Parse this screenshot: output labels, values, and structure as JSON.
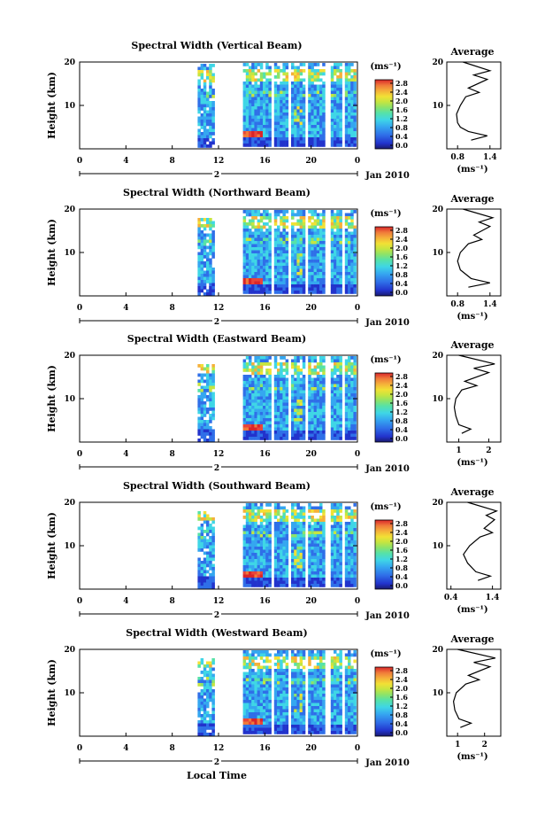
{
  "chart_data": {
    "type": "heatmap",
    "colorbar": {
      "unit": "(ms⁻¹)",
      "ticks": [
        "2.8",
        "2.4",
        "2.0",
        "1.6",
        "1.2",
        "0.8",
        "0.4",
        "0.0"
      ],
      "colors": [
        "#1a1a6e",
        "#2233cc",
        "#2f6fe8",
        "#35a7f0",
        "#3fd6e6",
        "#56e2a8",
        "#8ce36a",
        "#c6e540",
        "#f2e035",
        "#f5b03a",
        "#f07a3a",
        "#e8453a",
        "#d9252a"
      ]
    },
    "panels": [
      {
        "title": "Spectral Width (Vertical Beam)",
        "ylabel": "Height (km)",
        "yticks": [
          "20",
          "10"
        ],
        "xticks": [
          "0",
          "4",
          "8",
          "12",
          "16",
          "20",
          "0"
        ],
        "day_marker": "2",
        "date_label": "Jan 2010",
        "average": {
          "title": "Average",
          "yticks": [
            "20",
            "10"
          ],
          "xticks": [
            "0.8",
            "1.4"
          ],
          "xlim": [
            0.6,
            1.6
          ],
          "unit": "(ms⁻¹)",
          "profile": [
            [
              1.05,
              2
            ],
            [
              1.35,
              3
            ],
            [
              1.0,
              4
            ],
            [
              0.85,
              5
            ],
            [
              0.8,
              6
            ],
            [
              0.78,
              8
            ],
            [
              0.85,
              10
            ],
            [
              0.95,
              12
            ],
            [
              1.2,
              13
            ],
            [
              1.0,
              14
            ],
            [
              1.35,
              16
            ],
            [
              1.1,
              17
            ],
            [
              1.4,
              18
            ],
            [
              0.9,
              20
            ]
          ]
        }
      },
      {
        "title": "Spectral Width (Northward Beam)",
        "ylabel": "Height (km)",
        "yticks": [
          "20",
          "10"
        ],
        "xticks": [
          "0",
          "4",
          "8",
          "12",
          "16",
          "20",
          "0"
        ],
        "day_marker": "2",
        "date_label": "Jan 2010",
        "average": {
          "title": "Average",
          "yticks": [
            "20",
            "10"
          ],
          "xticks": [
            "0.8",
            "1.4"
          ],
          "xlim": [
            0.6,
            1.6
          ],
          "unit": "(ms⁻¹)",
          "profile": [
            [
              1.0,
              2
            ],
            [
              1.4,
              3
            ],
            [
              1.05,
              4
            ],
            [
              0.85,
              6
            ],
            [
              0.8,
              8
            ],
            [
              0.85,
              10
            ],
            [
              1.0,
              12
            ],
            [
              1.25,
              13
            ],
            [
              1.1,
              14
            ],
            [
              1.4,
              16
            ],
            [
              1.2,
              17
            ],
            [
              1.45,
              18
            ],
            [
              0.9,
              20
            ]
          ]
        }
      },
      {
        "title": "Spectral Width (Eastward Beam)",
        "ylabel": "Height (km)",
        "yticks": [
          "20",
          "10"
        ],
        "xticks": [
          "0",
          "4",
          "8",
          "12",
          "16",
          "20",
          "0"
        ],
        "day_marker": "2",
        "date_label": "Jan 2010",
        "average": {
          "title": "Average",
          "yticks": [
            "20",
            "10"
          ],
          "xticks": [
            "1",
            "2"
          ],
          "xlim": [
            0.6,
            2.4
          ],
          "unit": "(ms⁻¹)",
          "profile": [
            [
              1.1,
              2
            ],
            [
              1.4,
              3
            ],
            [
              1.0,
              4
            ],
            [
              0.9,
              6
            ],
            [
              0.85,
              8
            ],
            [
              0.9,
              10
            ],
            [
              1.1,
              12
            ],
            [
              1.6,
              13
            ],
            [
              1.2,
              14
            ],
            [
              2.0,
              16
            ],
            [
              1.5,
              17
            ],
            [
              2.2,
              18
            ],
            [
              1.0,
              20
            ]
          ]
        }
      },
      {
        "title": "Spectral Width (Southward Beam)",
        "ylabel": "Height (km)",
        "yticks": [
          "20",
          "10"
        ],
        "xticks": [
          "0",
          "4",
          "8",
          "12",
          "16",
          "20",
          "0"
        ],
        "day_marker": "2",
        "date_label": "Jan 2010",
        "average": {
          "title": "Average",
          "yticks": [
            "20",
            "10"
          ],
          "xticks": [
            "0.4",
            "1.4"
          ],
          "xlim": [
            0.3,
            1.6
          ],
          "unit": "(ms⁻¹)",
          "profile": [
            [
              1.05,
              2
            ],
            [
              1.35,
              3
            ],
            [
              1.0,
              4
            ],
            [
              0.8,
              6
            ],
            [
              0.7,
              8
            ],
            [
              0.85,
              10
            ],
            [
              1.1,
              12
            ],
            [
              1.4,
              13
            ],
            [
              1.2,
              14
            ],
            [
              1.45,
              16
            ],
            [
              1.25,
              17
            ],
            [
              1.5,
              18
            ],
            [
              0.8,
              20
            ]
          ]
        }
      },
      {
        "title": "Spectral Width (Westward Beam)",
        "ylabel": "Height (km)",
        "yticks": [
          "20",
          "10"
        ],
        "xticks": [
          "0",
          "4",
          "8",
          "12",
          "16",
          "20",
          "0"
        ],
        "day_marker": "2",
        "date_label": "Jan 2010",
        "average": {
          "title": "Average",
          "yticks": [
            "20",
            "10"
          ],
          "xticks": [
            "1",
            "2"
          ],
          "xlim": [
            0.6,
            2.6
          ],
          "unit": "(ms⁻¹)",
          "profile": [
            [
              1.1,
              2
            ],
            [
              1.5,
              3
            ],
            [
              1.05,
              4
            ],
            [
              0.9,
              6
            ],
            [
              0.85,
              8
            ],
            [
              0.95,
              10
            ],
            [
              1.3,
              12
            ],
            [
              1.8,
              13
            ],
            [
              1.4,
              14
            ],
            [
              2.2,
              16
            ],
            [
              1.6,
              17
            ],
            [
              2.4,
              18
            ],
            [
              1.0,
              20
            ]
          ]
        }
      }
    ],
    "xlabel": "Local Time"
  }
}
